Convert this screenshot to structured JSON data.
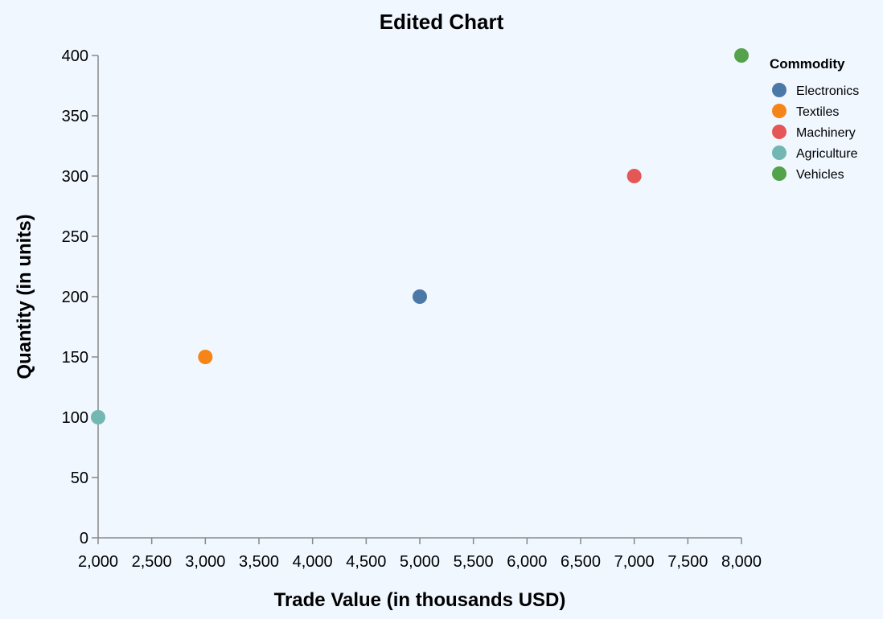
{
  "chart_data": {
    "type": "scatter",
    "title": "Edited Chart",
    "xlabel": "Trade Value (in thousands USD)",
    "ylabel": "Quantity (in units)",
    "xlim": [
      2000,
      8000
    ],
    "ylim": [
      0,
      400
    ],
    "xticks": [
      2000,
      2500,
      3000,
      3500,
      4000,
      4500,
      5000,
      5500,
      6000,
      6500,
      7000,
      7500,
      8000
    ],
    "yticks": [
      0,
      50,
      100,
      150,
      200,
      250,
      300,
      350,
      400
    ],
    "xtick_labels": [
      "2,000",
      "2,500",
      "3,000",
      "3,500",
      "4,000",
      "4,500",
      "5,000",
      "5,500",
      "6,000",
      "6,500",
      "7,000",
      "7,500",
      "8,000"
    ],
    "ytick_labels": [
      "0",
      "50",
      "100",
      "150",
      "200",
      "250",
      "300",
      "350",
      "400"
    ],
    "grid": false,
    "legend": {
      "title": "Commodity",
      "placement": "top-right"
    },
    "series": [
      {
        "name": "Electronics",
        "color": "#4c78a8",
        "points": [
          {
            "x": 5000,
            "y": 200
          }
        ]
      },
      {
        "name": "Textiles",
        "color": "#f58518",
        "points": [
          {
            "x": 3000,
            "y": 150
          }
        ]
      },
      {
        "name": "Machinery",
        "color": "#e45756",
        "points": [
          {
            "x": 7000,
            "y": 300
          }
        ]
      },
      {
        "name": "Agriculture",
        "color": "#72b7b2",
        "points": [
          {
            "x": 2000,
            "y": 100
          }
        ]
      },
      {
        "name": "Vehicles",
        "color": "#54a24b",
        "points": [
          {
            "x": 8000,
            "y": 400
          }
        ]
      }
    ]
  }
}
